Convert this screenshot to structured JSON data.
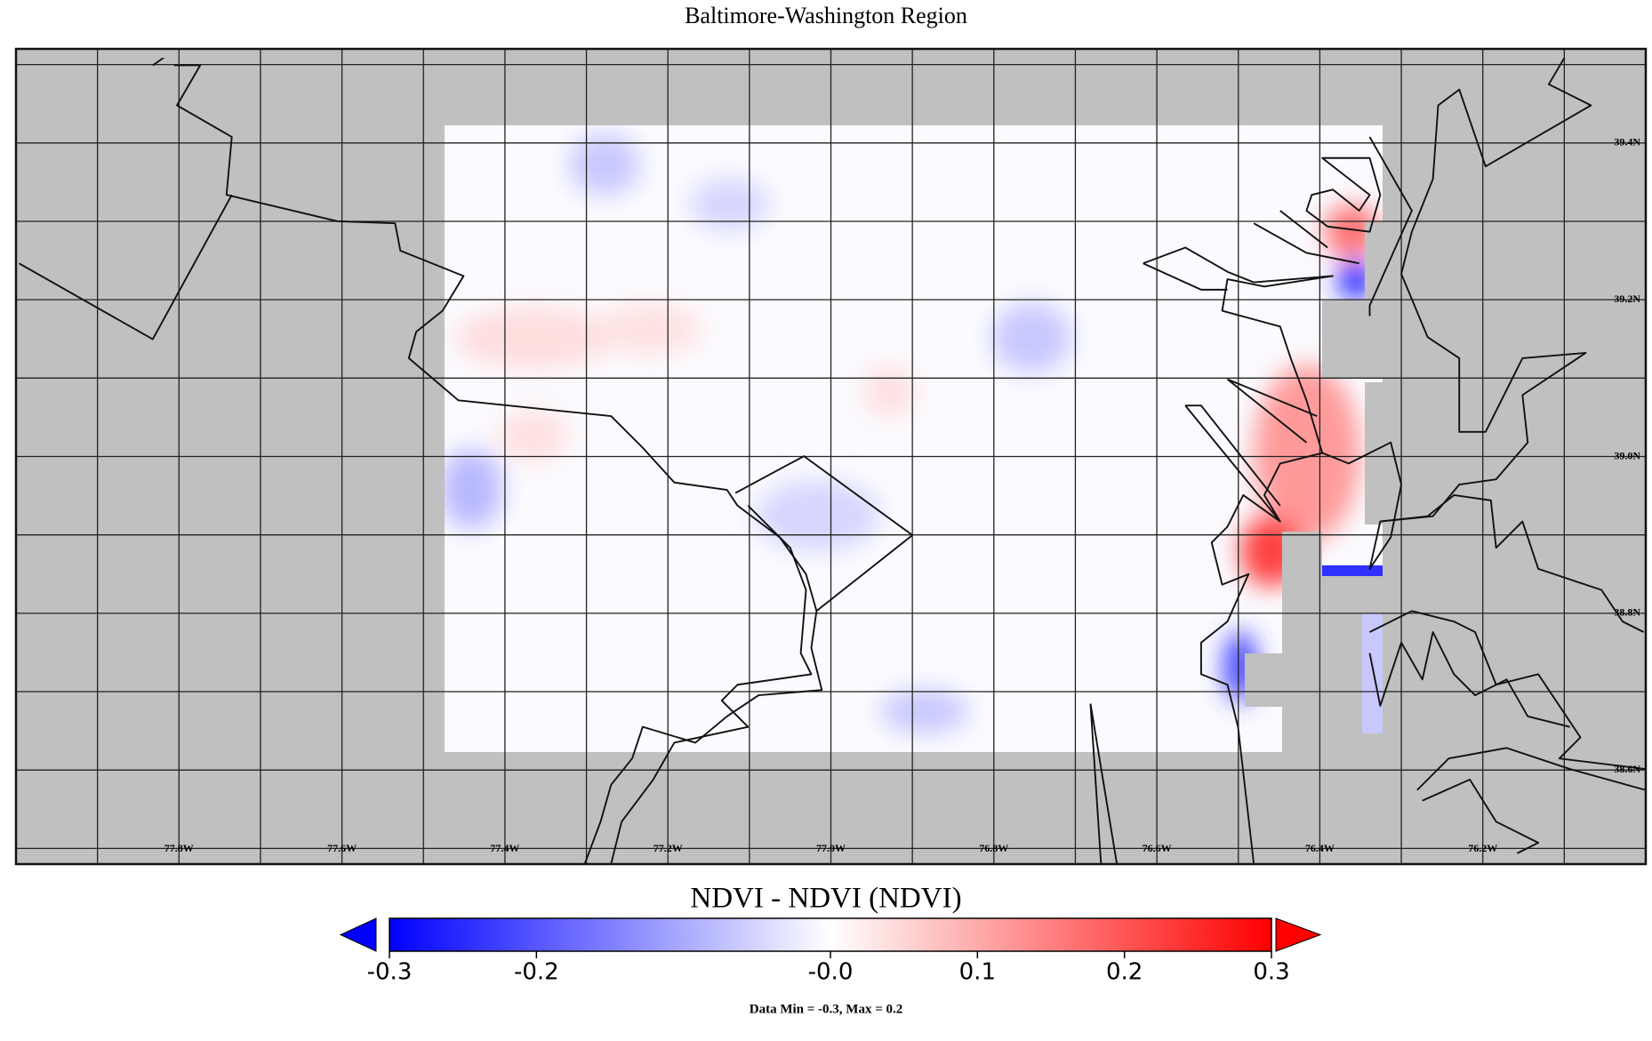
{
  "map": {
    "title": "Baltimore-Washington Region",
    "xlim": [
      -78.0,
      -76.0
    ],
    "ylim": [
      38.48,
      39.52
    ],
    "grid": true,
    "grid_step": 0.1,
    "xticks": [
      {
        "value": -77.8,
        "label": "77.8W"
      },
      {
        "value": -77.6,
        "label": "77.6W"
      },
      {
        "value": -77.4,
        "label": "77.4W"
      },
      {
        "value": -77.2,
        "label": "77.2W"
      },
      {
        "value": -77.0,
        "label": "77.0W"
      },
      {
        "value": -76.8,
        "label": "76.8W"
      },
      {
        "value": -76.6,
        "label": "76.6W"
      },
      {
        "value": -76.4,
        "label": "76.4W"
      },
      {
        "value": -76.2,
        "label": "76.2W"
      }
    ],
    "yticks": [
      {
        "value": 39.4,
        "label": "39.4N"
      },
      {
        "value": 39.2,
        "label": "39.2N"
      },
      {
        "value": 39.0,
        "label": "39.0N"
      },
      {
        "value": 38.8,
        "label": "38.8N"
      },
      {
        "value": 38.6,
        "label": "38.6N"
      }
    ]
  },
  "colorbar": {
    "title": "NDVI - NDVI (NDVI)",
    "xlim": [
      -0.3,
      0.3
    ],
    "ticks": [
      -0.3,
      -0.2,
      {
        "value": 0,
        "label": "-0.0"
      },
      0.1,
      0.2,
      0.3
    ],
    "colors": [
      "#0000ff",
      "#ffffff",
      "#ff0000"
    ],
    "note": "Data Min = -0.3, Max = 0.2"
  }
}
